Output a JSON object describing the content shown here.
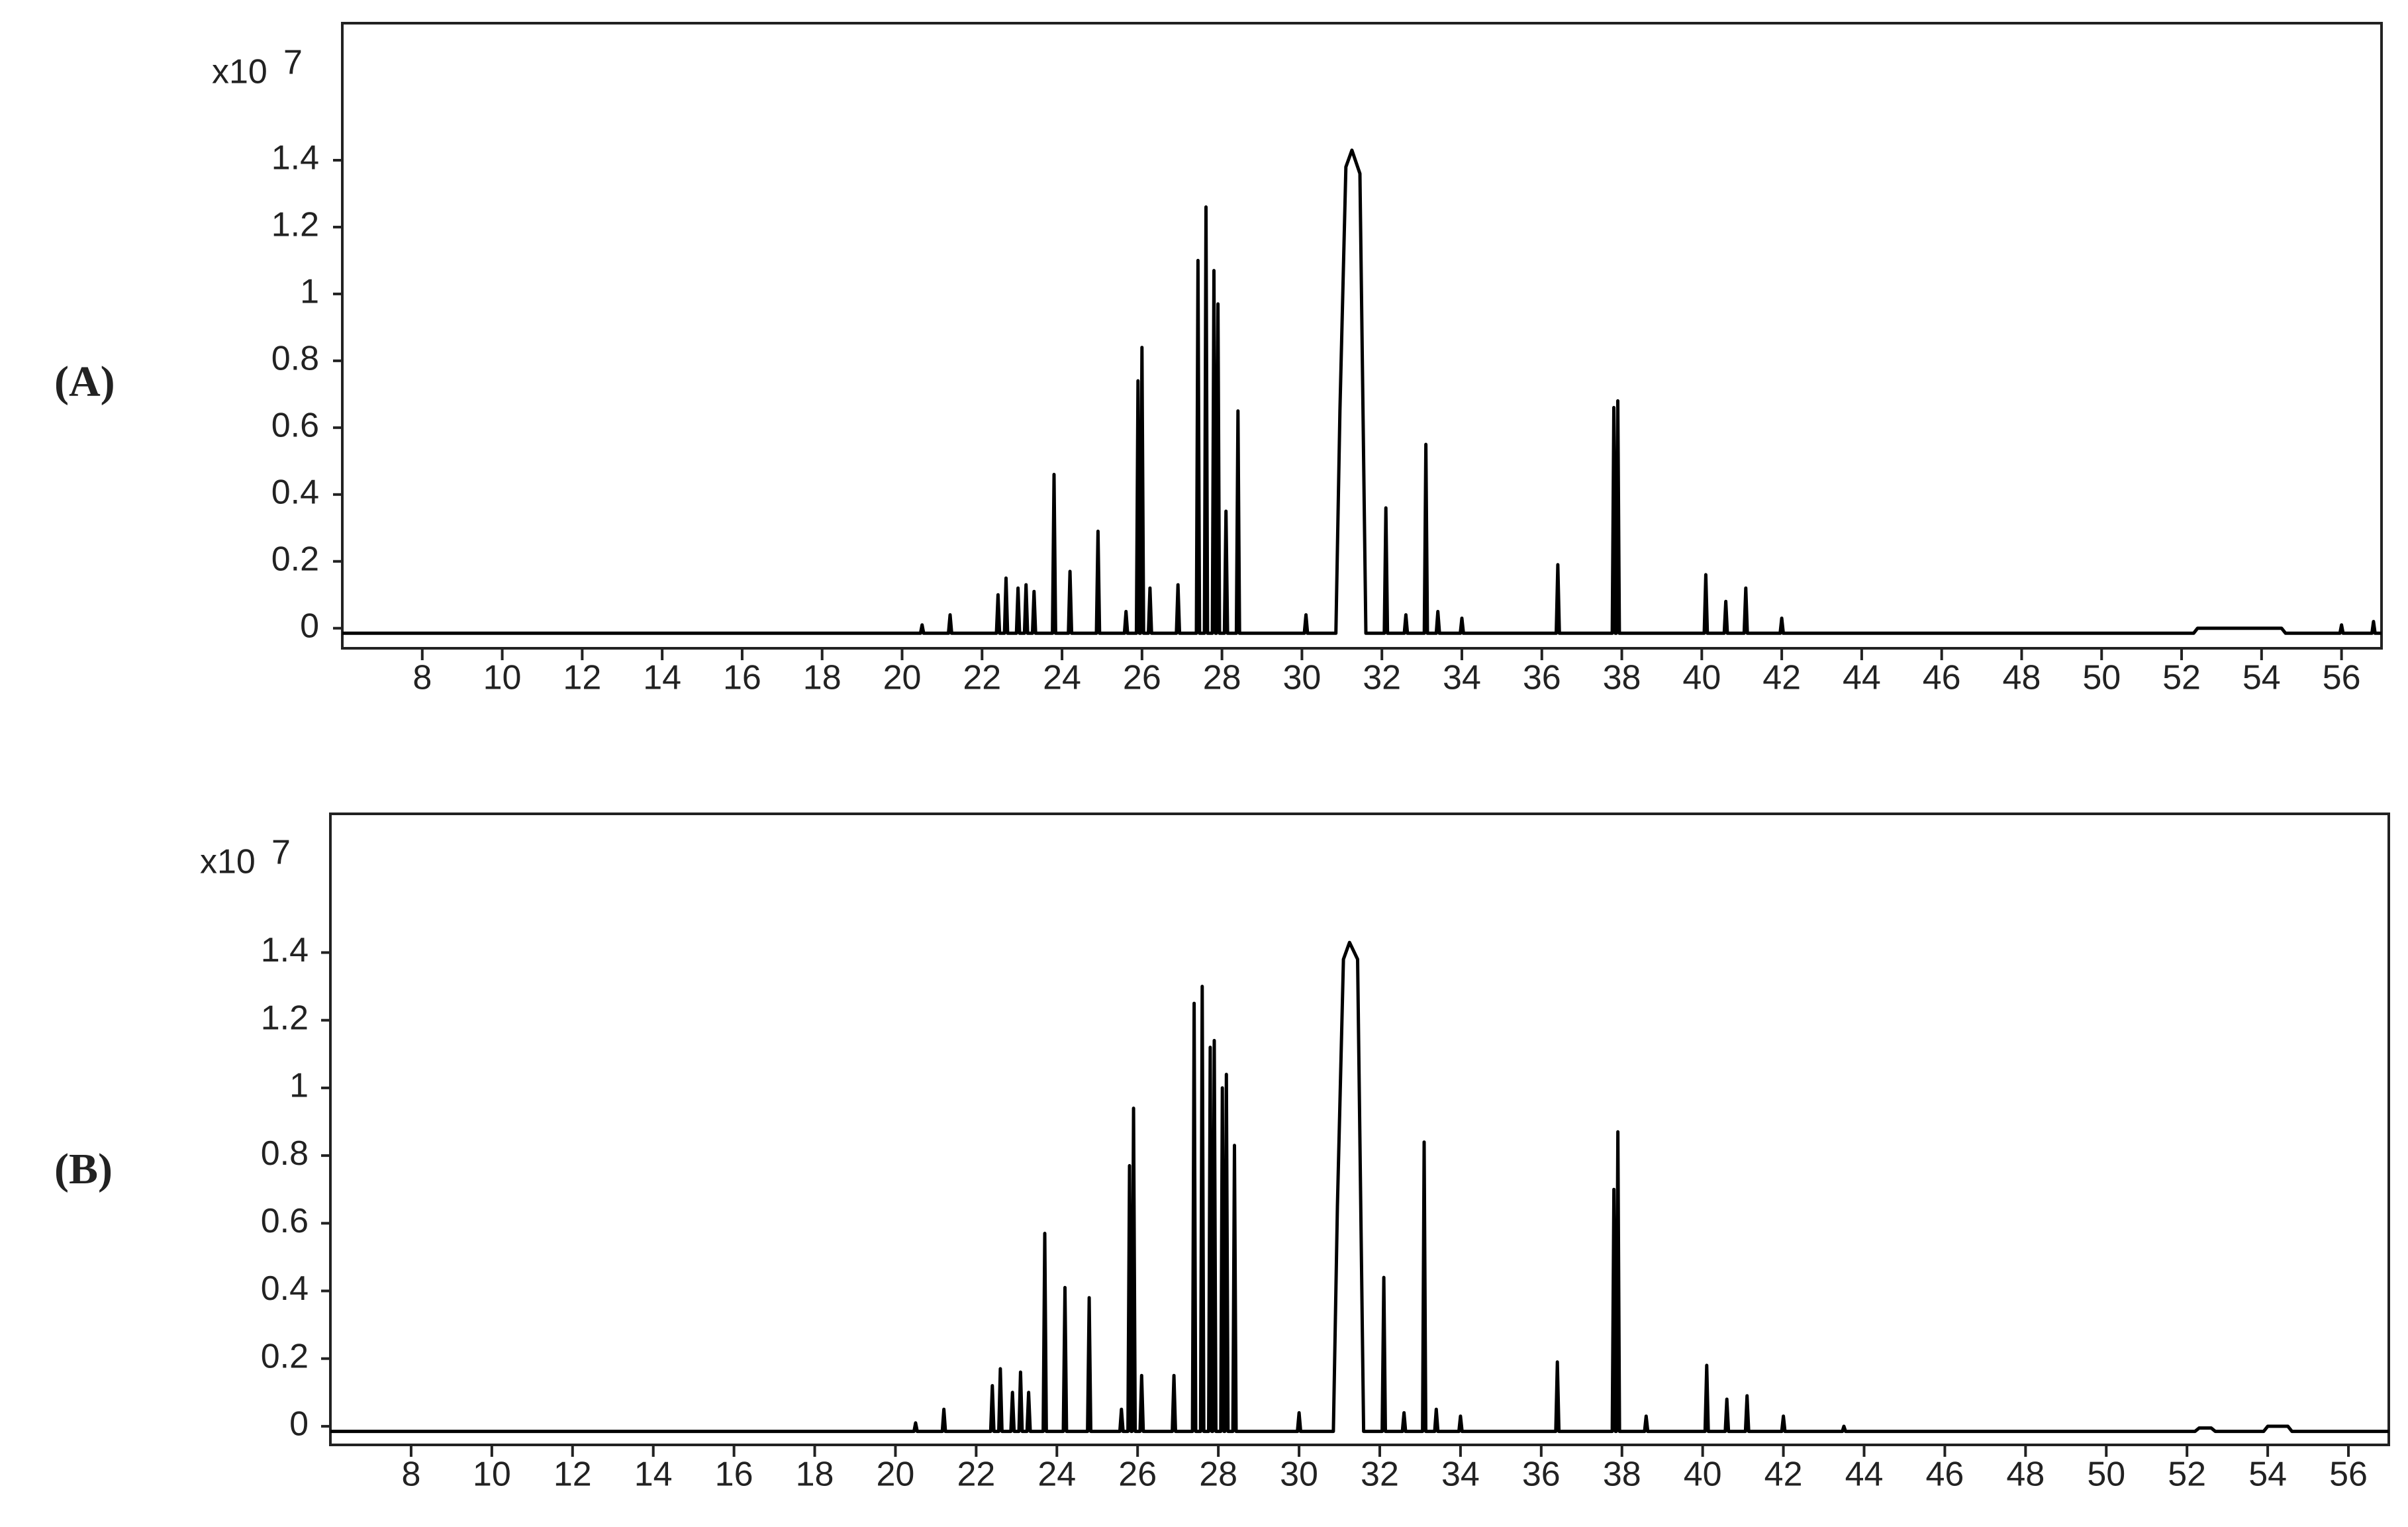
{
  "chart_data": [
    {
      "type": "line",
      "panel_label": "(A)",
      "multiplier": "x10",
      "exponent": "7",
      "x": [
        6,
        20.46,
        20.5,
        20.54,
        21.16,
        21.2,
        21.24,
        22.36,
        22.4,
        22.44,
        22.56,
        22.6,
        22.64,
        22.86,
        22.9,
        22.94,
        23.06,
        23.1,
        23.14,
        23.26,
        23.3,
        23.34,
        23.76,
        23.8,
        23.84,
        24.16,
        24.2,
        24.24,
        24.86,
        24.9,
        24.94,
        25.56,
        25.6,
        25.64,
        25.86,
        25.9,
        25.94,
        25.96,
        26.0,
        26.04,
        26.16,
        26.2,
        26.24,
        26.86,
        26.9,
        26.94,
        27.36,
        27.4,
        27.44,
        27.56,
        27.6,
        27.64,
        27.76,
        27.8,
        27.84,
        27.86,
        27.9,
        27.94,
        28.06,
        28.1,
        28.14,
        28.36,
        28.4,
        28.44,
        30.06,
        30.1,
        30.14,
        30.85,
        30.95,
        31.1,
        31.25,
        31.45,
        31.6,
        32.06,
        32.1,
        32.14,
        32.56,
        32.6,
        32.64,
        33.06,
        33.1,
        33.14,
        33.36,
        33.4,
        33.44,
        33.96,
        34.0,
        34.04,
        36.36,
        36.4,
        36.44,
        37.76,
        37.8,
        37.84,
        37.86,
        37.9,
        37.94,
        40.06,
        40.1,
        40.14,
        40.56,
        40.6,
        40.64,
        41.06,
        41.1,
        41.14,
        41.96,
        42.0,
        42.04,
        52.3,
        52.4,
        54.5,
        54.6,
        55.96,
        56.0,
        56.04,
        56.76,
        56.8,
        56.84,
        57
      ],
      "series": [
        {
          "color": "#000000",
          "values": [
            -0.015,
            -0.015,
            0.01,
            -0.015,
            -0.015,
            0.04,
            -0.015,
            -0.015,
            0.1,
            -0.015,
            -0.015,
            0.15,
            -0.015,
            -0.015,
            0.12,
            -0.015,
            -0.015,
            0.13,
            -0.015,
            -0.015,
            0.11,
            -0.015,
            -0.015,
            0.46,
            -0.015,
            -0.015,
            0.17,
            -0.015,
            -0.015,
            0.29,
            -0.015,
            -0.015,
            0.05,
            -0.015,
            -0.015,
            0.74,
            -0.015,
            -0.015,
            0.84,
            -0.015,
            -0.015,
            0.12,
            -0.015,
            -0.015,
            0.13,
            -0.015,
            -0.015,
            1.1,
            -0.015,
            -0.015,
            1.26,
            -0.015,
            -0.015,
            1.07,
            -0.015,
            -0.015,
            0.97,
            -0.015,
            -0.015,
            0.35,
            -0.015,
            -0.015,
            0.65,
            -0.015,
            -0.015,
            0.04,
            -0.015,
            -0.015,
            0.65,
            1.38,
            1.43,
            1.36,
            -0.015,
            -0.015,
            0.36,
            -0.015,
            -0.015,
            0.04,
            -0.015,
            -0.015,
            0.55,
            -0.015,
            -0.015,
            0.05,
            -0.015,
            -0.015,
            0.03,
            -0.015,
            -0.015,
            0.19,
            -0.015,
            -0.015,
            0.66,
            -0.015,
            -0.015,
            0.68,
            -0.015,
            -0.015,
            0.16,
            -0.015,
            -0.015,
            0.08,
            -0.015,
            -0.015,
            0.12,
            -0.015,
            -0.015,
            0.03,
            -0.015,
            -0.015,
            0,
            0,
            -0.015,
            -0.015,
            0.01,
            -0.015,
            -0.015,
            0.02,
            -0.015,
            -0.015
          ]
        }
      ],
      "xlim": [
        6,
        57
      ],
      "ylim": [
        -0.06,
        1.81
      ],
      "xticks": [
        8,
        10,
        12,
        14,
        16,
        18,
        20,
        22,
        24,
        26,
        28,
        30,
        32,
        34,
        36,
        38,
        40,
        42,
        44,
        46,
        48,
        50,
        52,
        54,
        56
      ],
      "yticks": [
        0,
        0.2,
        0.4,
        0.6,
        0.8,
        1,
        1.2,
        1.4
      ]
    },
    {
      "type": "line",
      "panel_label": "(B)",
      "multiplier": "x10",
      "exponent": "7",
      "x": [
        6,
        20.46,
        20.5,
        20.54,
        21.16,
        21.2,
        21.24,
        22.36,
        22.4,
        22.44,
        22.56,
        22.6,
        22.64,
        22.86,
        22.9,
        22.94,
        23.06,
        23.1,
        23.14,
        23.26,
        23.3,
        23.34,
        23.66,
        23.7,
        23.74,
        24.16,
        24.2,
        24.24,
        24.76,
        24.8,
        24.84,
        25.56,
        25.6,
        25.64,
        25.76,
        25.8,
        25.84,
        25.86,
        25.9,
        25.94,
        26.06,
        26.1,
        26.14,
        26.86,
        26.9,
        26.94,
        27.36,
        27.4,
        27.44,
        27.56,
        27.6,
        27.64,
        27.76,
        27.8,
        27.84,
        27.86,
        27.9,
        27.94,
        28.06,
        28.1,
        28.14,
        28.16,
        28.2,
        28.24,
        28.36,
        28.4,
        28.44,
        29.96,
        30.0,
        30.04,
        30.85,
        30.95,
        31.1,
        31.25,
        31.45,
        31.6,
        32.06,
        32.1,
        32.14,
        32.56,
        32.6,
        32.64,
        33.06,
        33.1,
        33.14,
        33.36,
        33.4,
        33.44,
        33.96,
        34.0,
        34.04,
        36.36,
        36.4,
        36.44,
        37.76,
        37.8,
        37.84,
        37.86,
        37.9,
        37.94,
        38.56,
        38.6,
        38.64,
        40.06,
        40.1,
        40.14,
        40.56,
        40.6,
        40.64,
        41.06,
        41.1,
        41.14,
        41.96,
        42.0,
        42.04,
        43.46,
        43.5,
        43.54,
        52.2,
        52.3,
        52.6,
        52.7,
        53.9,
        54.0,
        54.5,
        54.6,
        57
      ],
      "series": [
        {
          "color": "#000000",
          "values": [
            -0.015,
            -0.015,
            0.01,
            -0.015,
            -0.015,
            0.05,
            -0.015,
            -0.015,
            0.12,
            -0.015,
            -0.015,
            0.17,
            -0.015,
            -0.015,
            0.1,
            -0.015,
            -0.015,
            0.16,
            -0.015,
            -0.015,
            0.1,
            -0.015,
            -0.015,
            0.57,
            -0.015,
            -0.015,
            0.41,
            -0.015,
            -0.015,
            0.38,
            -0.015,
            -0.015,
            0.05,
            -0.015,
            -0.015,
            0.77,
            -0.015,
            -0.015,
            0.94,
            -0.015,
            -0.015,
            0.15,
            -0.015,
            -0.015,
            0.15,
            -0.015,
            -0.015,
            1.25,
            -0.015,
            -0.015,
            1.3,
            -0.015,
            -0.015,
            1.12,
            -0.015,
            -0.015,
            1.14,
            -0.015,
            -0.015,
            1.0,
            -0.015,
            -0.015,
            1.04,
            -0.015,
            -0.015,
            0.83,
            -0.015,
            -0.015,
            0.04,
            -0.015,
            -0.015,
            0.65,
            1.38,
            1.43,
            1.38,
            -0.015,
            -0.015,
            0.44,
            -0.015,
            -0.015,
            0.04,
            -0.015,
            -0.015,
            0.84,
            -0.015,
            -0.015,
            0.05,
            -0.015,
            -0.015,
            0.03,
            -0.015,
            -0.015,
            0.19,
            -0.015,
            -0.015,
            0.7,
            -0.015,
            -0.015,
            0.87,
            -0.015,
            -0.015,
            0.03,
            -0.015,
            -0.015,
            0.18,
            -0.015,
            -0.015,
            0.08,
            -0.015,
            -0.015,
            0.09,
            -0.015,
            -0.015,
            0.03,
            -0.015,
            -0.015,
            0,
            -0.015,
            -0.015,
            -0.005,
            -0.005,
            -0.015,
            -0.015,
            0,
            0,
            -0.015,
            -0.015
          ]
        }
      ],
      "xlim": [
        6,
        57
      ],
      "ylim": [
        -0.055,
        1.81
      ],
      "xticks": [
        8,
        10,
        12,
        14,
        16,
        18,
        20,
        22,
        24,
        26,
        28,
        30,
        32,
        34,
        36,
        38,
        40,
        42,
        44,
        46,
        48,
        50,
        52,
        54,
        56
      ],
      "yticks": [
        0,
        0.2,
        0.4,
        0.6,
        0.8,
        1,
        1.2,
        1.4
      ]
    }
  ]
}
